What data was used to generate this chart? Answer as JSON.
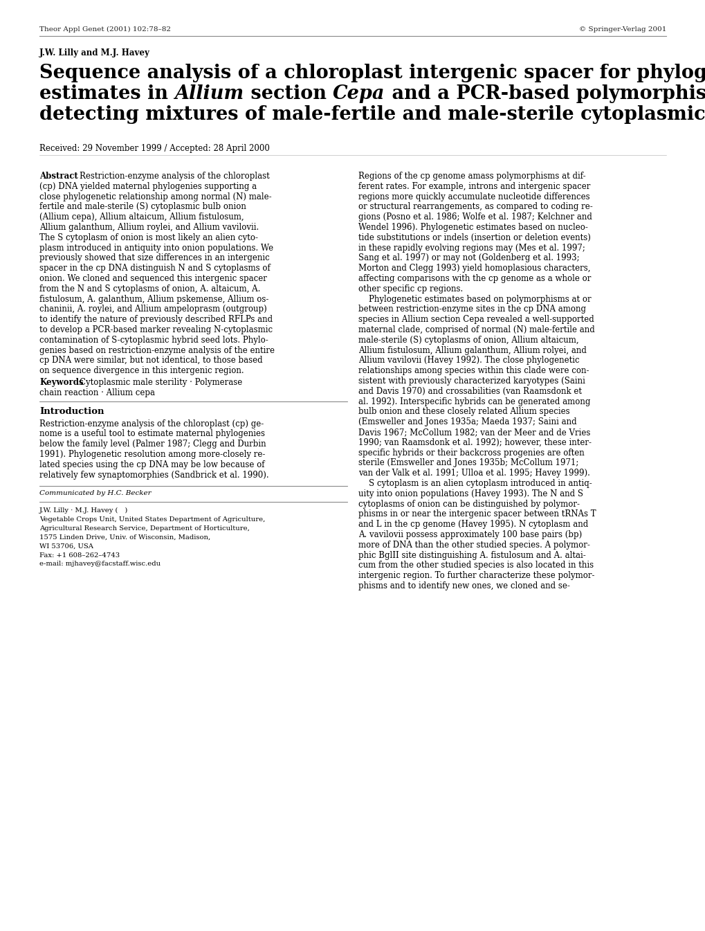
{
  "header_left": "Theor Appl Genet (2001) 102:78–82",
  "header_right": "© Springer-Verlag 2001",
  "authors": "J.W. Lilly and M.J. Havey",
  "title_line1": "Sequence analysis of a chloroplast intergenic spacer for phylogenetic",
  "title_line2_pre": "estimates in ",
  "title_line2_italic1": "Allium",
  "title_line2_mid": " section ",
  "title_line2_italic2": "Cepa",
  "title_line2_post": " and a PCR-based polymorphism",
  "title_line3": "detecting mixtures of male-fertile and male-sterile cytoplasmic onion",
  "received": "Received: 29 November 1999 / Accepted: 28 April 2000",
  "abstract_label": "Abstract",
  "abstract_col1_lines": [
    "Restriction-enzyme analysis of the chloroplast",
    "(cp) DNA yielded maternal phylogenies supporting a",
    "close phylogenetic relationship among normal (N) male-",
    "fertile and male-sterile (S) cytoplasmic bulb onion",
    "(Allium cepa), Allium altaicum, Allium fistulosum,",
    "Allium galanthum, Allium roylei, and Allium vavilovii.",
    "The S cytoplasm of onion is most likely an alien cyto-",
    "plasm introduced in antiquity into onion populations. We",
    "previously showed that size differences in an intergenic",
    "spacer in the cp DNA distinguish N and S cytoplasms of",
    "onion. We cloned and sequenced this intergenic spacer",
    "from the N and S cytoplasms of onion, A. altaicum, A.",
    "fistulosum, A. galanthum, Allium pskemense, Allium os-",
    "chaninii, A. roylei, and Allium ampeloprasm (outgroup)",
    "to identify the nature of previously described RFLPs and",
    "to develop a PCR-based marker revealing N-cytoplasmic",
    "contamination of S-cytoplasmic hybrid seed lots. Phylo-",
    "genies based on restriction-enzyme analysis of the entire",
    "cp DNA were similar, but not identical, to those based",
    "on sequence divergence in this intergenic region."
  ],
  "abstract_col1_italic_words": [
    "Allium cepa",
    "Allium altaicum",
    "Allium fistulosum",
    "Allium galanthum",
    "Allium roylei",
    "Allium vavilovii",
    "A. altaicum",
    "A.",
    "fistulosum",
    "A. galanthum",
    "Allium pskemense",
    "Allium os-",
    "chaninii",
    "A. roylei",
    "Allium ampeloprasm"
  ],
  "keywords_label": "Keywords",
  "keywords_text": "Cytoplasmic male sterility · Polymerase",
  "keywords_text2": "chain reaction · Allium cepa",
  "intro_header": "Introduction",
  "intro_col1_lines": [
    "Restriction-enzyme analysis of the chloroplast (cp) ge-",
    "nome is a useful tool to estimate maternal phylogenies",
    "below the family level (Palmer 1987; Clegg and Durbin",
    "1991). Phylogenetic resolution among more-closely re-",
    "lated species using the cp DNA may be low because of",
    "relatively few synaptomorphies (Sandbrick et al. 1990)."
  ],
  "communicated": "Communicated by H.C. Becker",
  "footnote_lines": [
    "J.W. Lilly · M.J. Havey ( )",
    "Vegetable Crops Unit, United States Department of Agriculture,",
    "Agricultural Research Service, Department of Horticulture,",
    "1575 Linden Drive, Univ. of Wisconsin, Madison,",
    "WI 53706, USA",
    "Fax: +1 608–262–4743",
    "e-mail: mjhavey@facstaff.wisc.edu"
  ],
  "abstract_col2_lines": [
    "Regions of the cp genome amass polymorphisms at dif-",
    "ferent rates. For example, introns and intergenic spacer",
    "regions more quickly accumulate nucleotide differences",
    "or structural rearrangements, as compared to coding re-",
    "gions (Posno et al. 1986; Wolfe et al. 1987; Kelchner and",
    "Wendel 1996). Phylogenetic estimates based on nucleo-",
    "tide substitutions or indels (insertion or deletion events)",
    "in these rapidly evolving regions may (Mes et al. 1997;",
    "Sang et al. 1997) or may not (Goldenberg et al. 1993;",
    "Morton and Clegg 1993) yield homoplasious characters,",
    "affecting comparisons with the cp genome as a whole or",
    "other specific cp regions.",
    "    Phylogenetic estimates based on polymorphisms at or",
    "between restriction-enzyme sites in the cp DNA among",
    "species in Allium section Cepa revealed a well-supported",
    "maternal clade, comprised of normal (N) male-fertile and",
    "male-sterile (S) cytoplasms of onion, Allium altaicum,",
    "Allium fistulosum, Allium galanthum, Allium rolyei, and",
    "Allium vavilovii (Havey 1992). The close phylogenetic",
    "relationships among species within this clade were con-",
    "sistent with previously characterized karyotypes (Saini",
    "and Davis 1970) and crossabilities (van Raamsdonk et",
    "al. 1992). Interspecific hybrids can be generated among",
    "bulb onion and these closely related Allium species",
    "(Emsweller and Jones 1935a; Maeda 1937; Saini and",
    "Davis 1967; McCollum 1982; van der Meer and de Vries",
    "1990; van Raamsdonk et al. 1992); however, these inter-",
    "specific hybrids or their backcross progenies are often",
    "sterile (Emsweller and Jones 1935b; McCollum 1971;",
    "van der Valk et al. 1991; Ulloa et al. 1995; Havey 1999).",
    "    S cytoplasm is an alien cytoplasm introduced in antiq-",
    "uity into onion populations (Havey 1993). The N and S",
    "cytoplasms of onion can be distinguished by polymor-",
    "phisms in or near the intergenic spacer between tRNAs T",
    "and L in the cp genome (Havey 1995). N cytoplasm and",
    "A. vavilovii possess approximately 100 base pairs (bp)",
    "more of DNA than the other studied species. A polymor-",
    "phic BglII site distinguishing A. fistulosum and A. altai-",
    "cum from the other studied species is also located in this",
    "intergenic region. To further characterize these polymor-",
    "phisms and to identify new ones, we cloned and se-"
  ],
  "body_fontsize": 8.5,
  "header_fontsize": 7.5,
  "title_fontsize": 19.5,
  "author_fontsize": 8.5,
  "keyword_fontsize": 8.5,
  "intro_header_fontsize": 9.5,
  "footnote_fontsize": 7.5
}
